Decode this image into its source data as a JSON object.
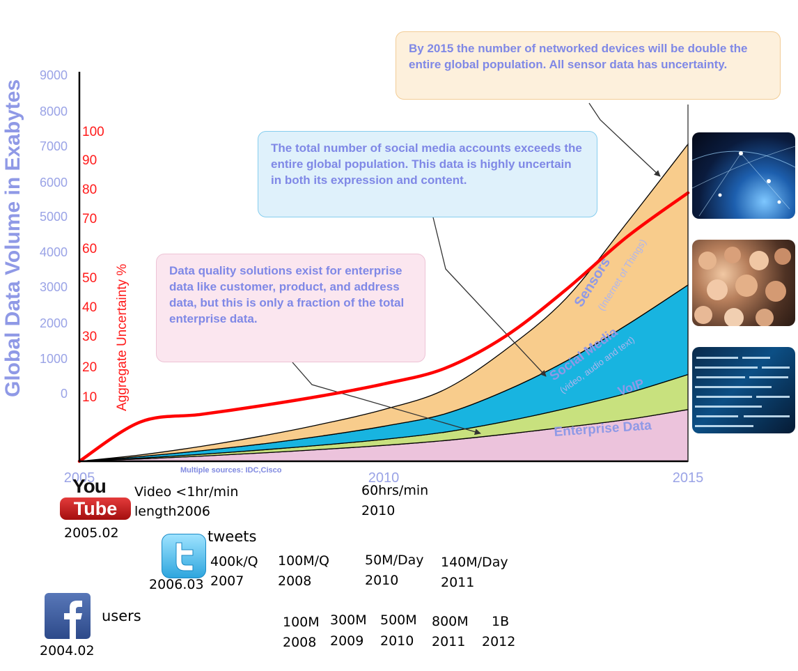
{
  "chart_data": {
    "type": "area",
    "title": "",
    "ylabel": "Global Data Volume in Exabytes",
    "y2label": "Aggregate Uncertainty %",
    "ylim": [
      0,
      9000
    ],
    "y_ticks": [
      "9000",
      "8000",
      "7000",
      "6000",
      "5000",
      "4000",
      "3000",
      "2000",
      "1000",
      "0"
    ],
    "y2_ticks": [
      "100",
      "90",
      "80",
      "70",
      "60",
      "50",
      "40",
      "30",
      "20",
      "10"
    ],
    "x_ticks": [
      "2005",
      "2010",
      "2015"
    ],
    "x": [
      2005,
      2006,
      2007,
      2008,
      2009,
      2010,
      2011,
      2012,
      2013,
      2014,
      2015
    ],
    "series": [
      {
        "name": "Enterprise Data",
        "values": [
          0,
          60,
          130,
          210,
          300,
          400,
          520,
          680,
          860,
          1050,
          1300
        ],
        "color": "#ecc3dc"
      },
      {
        "name": "VoIP",
        "values": [
          0,
          20,
          45,
          75,
          110,
          150,
          210,
          320,
          470,
          660,
          880
        ],
        "color": "#c8e17e"
      },
      {
        "name": "Social Media",
        "values": [
          0,
          40,
          90,
          150,
          230,
          330,
          460,
          770,
          1190,
          1720,
          2250
        ],
        "color": "#18b4e0"
      },
      {
        "name": "Sensors",
        "values": [
          0,
          40,
          110,
          200,
          300,
          420,
          610,
          1030,
          1580,
          2570,
          3540
        ],
        "color": "#f8cc8c"
      }
    ],
    "band_labels": {
      "sensors": "Sensors",
      "sensors_sub": "(Internet of Things)",
      "social": "Social Media",
      "social_sub": "(video, audio and text)",
      "voip": "VoIP",
      "enterprise": "Enterprise Data"
    },
    "uncertainty": {
      "name": "Aggregate Uncertainty %",
      "x": [
        2005,
        2006,
        2007,
        2008,
        2009,
        2010,
        2011,
        2012,
        2013,
        2014,
        2015
      ],
      "values": [
        0,
        2.7,
        5.3,
        8.3,
        11.7,
        15.7,
        21,
        32,
        48,
        66,
        81
      ],
      "color": "#ff0000"
    },
    "source": "Multiple sources: IDC,Cisco",
    "legend": "none",
    "grid": false
  },
  "callouts": {
    "sensors": "By 2015 the number of networked devices will be double the entire global population. All sensor data has uncertainty.",
    "social": "The total number of social media accounts exceeds the entire global population. This data is highly uncertain in both its expression and content.",
    "enterprise": "Data quality solutions exist for enterprise data like customer, product, and address data, but this is only a fraction of the total enterprise data."
  },
  "timeline": {
    "youtube": {
      "logo_top": "You",
      "logo_bottom": "Tube",
      "date": "2005.02",
      "m1_line1": "Video <1hr/min",
      "m1_line2": "length2006",
      "m2_line1": "60hrs/min",
      "m2_line2": "2010"
    },
    "twitter": {
      "date": "2006.03",
      "label": "tweets",
      "items": [
        {
          "value": "400k/Q",
          "year": "2007"
        },
        {
          "value": "100M/Q",
          "year": "2008"
        },
        {
          "value": "50M/Day",
          "year": "2010"
        },
        {
          "value": "140M/Day",
          "year": "2011"
        }
      ]
    },
    "facebook": {
      "date": "2004.02",
      "label": "users",
      "items": [
        {
          "value": "100M",
          "year": "2008"
        },
        {
          "value": "300M",
          "year": "2009"
        },
        {
          "value": "500M",
          "year": "2010"
        },
        {
          "value": "800M",
          "year": "2011"
        },
        {
          "value": "1B",
          "year": "2012"
        }
      ]
    }
  }
}
